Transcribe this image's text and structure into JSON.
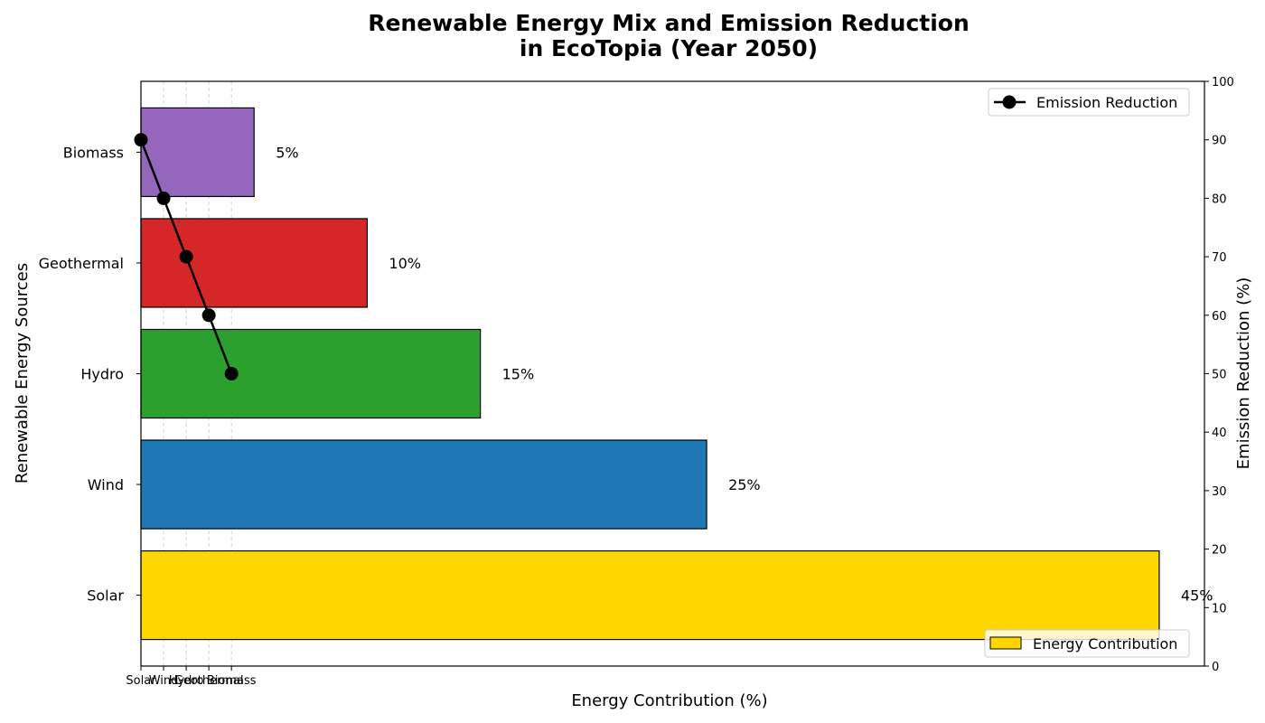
{
  "chart_data": {
    "type": "bar",
    "orientation": "horizontal",
    "title_line1": "Renewable Energy Mix and Emission Reduction",
    "title_line2": "in EcoTopia (Year 2050)",
    "xlabel": "Energy Contribution (%)",
    "ylabel": "Renewable Energy Sources",
    "y2label": "Emission Reduction (%)",
    "categories": [
      "Solar",
      "Wind",
      "Hydro",
      "Geothermal",
      "Biomass"
    ],
    "values": [
      45,
      25,
      15,
      10,
      5
    ],
    "value_labels": [
      "45%",
      "25%",
      "15%",
      "10%",
      "5%"
    ],
    "bar_colors": [
      "#FFD700",
      "#1F77B4",
      "#2CA02C",
      "#D62728",
      "#9467BD"
    ],
    "xlim": [
      0,
      47
    ],
    "secondary": {
      "name": "Emission Reduction",
      "type": "line",
      "x_categories": [
        "Solar",
        "Wind",
        "Hydro",
        "Geothermal",
        "Biomass"
      ],
      "values": [
        90,
        80,
        70,
        60,
        50
      ],
      "color": "#000000"
    },
    "y2lim": [
      0,
      100
    ],
    "y2ticks": [
      "0",
      "10",
      "20",
      "30",
      "40",
      "50",
      "60",
      "70",
      "80",
      "90",
      "100"
    ],
    "legend": {
      "bar_entry": "Energy Contribution",
      "bar_placement": "bottom-right",
      "line_entry": "Emission Reduction",
      "line_placement": "top-right"
    },
    "grid": "vertical dashed at category ticks"
  }
}
